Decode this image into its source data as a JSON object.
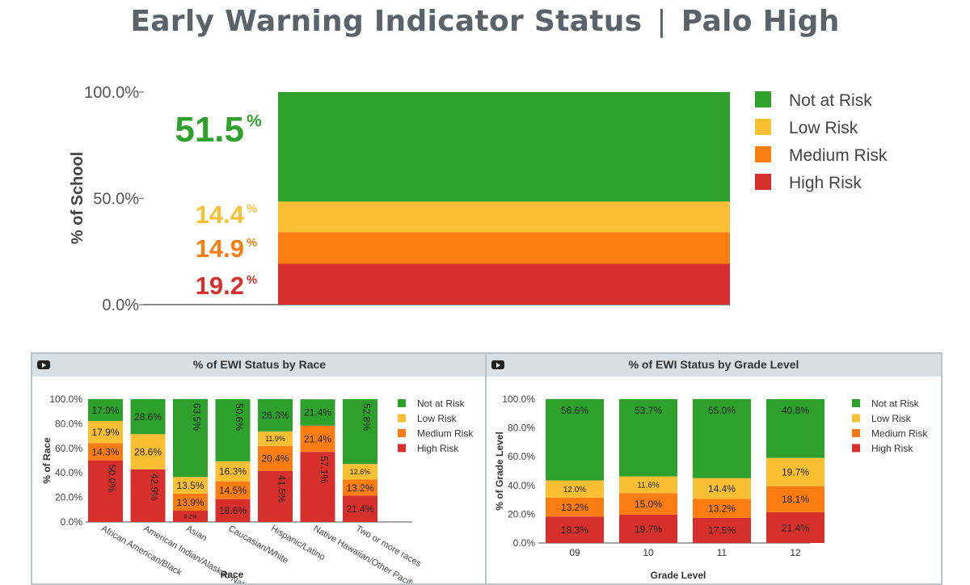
{
  "header": {
    "title": "Early Warning Indicator Status",
    "school": "Palo High"
  },
  "colors": {
    "not_at_risk": "#2ea02c",
    "low_risk": "#fbbf34",
    "medium_risk": "#fb7c10",
    "high_risk": "#d62f2c"
  },
  "chart_data": [
    {
      "type": "bar",
      "stacked": true,
      "title": "",
      "ylabel": "% of School",
      "yticks": [
        "100.0%",
        "50.0%",
        "0.0%"
      ],
      "ylim": [
        0,
        100
      ],
      "legend": [
        "Not at Risk",
        "Low Risk",
        "Medium Risk",
        "High Risk"
      ],
      "legend_position": "right",
      "series": [
        {
          "name": "High Risk",
          "values": [
            19.2
          ],
          "label": "19.2"
        },
        {
          "name": "Medium Risk",
          "values": [
            14.9
          ],
          "label": "14.9"
        },
        {
          "name": "Low Risk",
          "values": [
            14.4
          ],
          "label": "14.4"
        },
        {
          "name": "Not at Risk",
          "values": [
            51.5
          ],
          "label": "51.5"
        }
      ],
      "pct_symbol": "%"
    },
    {
      "type": "bar",
      "stacked": true,
      "title": "% of EWI Status by Race",
      "xlabel": "Race",
      "ylabel": "% of Race",
      "yticks": [
        "100.0%",
        "80.0%",
        "60.0%",
        "40.0%",
        "20.0%",
        "0.0%"
      ],
      "ylim": [
        0,
        100
      ],
      "legend": [
        "Not at Risk",
        "Low Risk",
        "Medium Risk",
        "High Risk"
      ],
      "legend_position": "right",
      "categories": [
        "African American/Black",
        "American Indian/Alaskan Native",
        "Asian",
        "Caucasian/White",
        "Hispanic/Latino",
        "Native Hawaiian/Other Pacific Islander",
        "Two or more races"
      ],
      "series": [
        {
          "name": "High Risk",
          "values": [
            50.0,
            42.9,
            9.2,
            18.6,
            41.5,
            57.1,
            21.4
          ],
          "labels": [
            "50.0%",
            "42.9%",
            "9.2%",
            "18.6%",
            "41.5%",
            "57.1%",
            "21.4%"
          ]
        },
        {
          "name": "Medium Risk",
          "values": [
            14.3,
            0,
            13.9,
            14.5,
            20.4,
            21.4,
            13.2
          ],
          "labels": [
            "14.3%",
            "",
            "13.9%",
            "14.5%",
            "20.4%",
            "21.4%",
            "13.2%"
          ]
        },
        {
          "name": "Low Risk",
          "values": [
            17.9,
            28.6,
            13.5,
            16.3,
            11.9,
            0,
            12.6
          ],
          "labels": [
            "17.9%",
            "28.6%",
            "13.5%",
            "16.3%",
            "11.9%",
            "",
            "12.6%"
          ]
        },
        {
          "name": "Not at Risk",
          "values": [
            17.9,
            28.6,
            63.5,
            50.6,
            26.3,
            21.4,
            52.8
          ],
          "labels": [
            "17.9%",
            "28.6%",
            "63.5%",
            "50.6%",
            "26.3%",
            "21.4%",
            "52.8%"
          ]
        }
      ]
    },
    {
      "type": "bar",
      "stacked": true,
      "title": "% of EWI Status by Grade Level",
      "xlabel": "Grade Level",
      "ylabel": "% of Grade Level",
      "yticks": [
        "100.0%",
        "80.0%",
        "60.0%",
        "40.0%",
        "20.0%",
        "0.0%"
      ],
      "ylim": [
        0,
        100
      ],
      "legend": [
        "Not at Risk",
        "Low Risk",
        "Medium Risk",
        "High Risk"
      ],
      "legend_position": "right",
      "categories": [
        "09",
        "10",
        "11",
        "12"
      ],
      "series": [
        {
          "name": "High Risk",
          "values": [
            18.3,
            19.7,
            17.5,
            21.4
          ],
          "labels": [
            "18.3%",
            "19.7%",
            "17.5%",
            "21.4%"
          ]
        },
        {
          "name": "Medium Risk",
          "values": [
            13.2,
            15.0,
            13.2,
            18.1
          ],
          "labels": [
            "13.2%",
            "15.0%",
            "13.2%",
            "18.1%"
          ]
        },
        {
          "name": "Low Risk",
          "values": [
            12.0,
            11.6,
            14.4,
            19.7
          ],
          "labels": [
            "12.0%",
            "11.6%",
            "14.4%",
            "19.7%"
          ]
        },
        {
          "name": "Not at Risk",
          "values": [
            56.6,
            53.7,
            55.0,
            40.8
          ],
          "labels": [
            "56.6%",
            "53.7%",
            "55.0%",
            "40.8%"
          ]
        }
      ]
    }
  ]
}
